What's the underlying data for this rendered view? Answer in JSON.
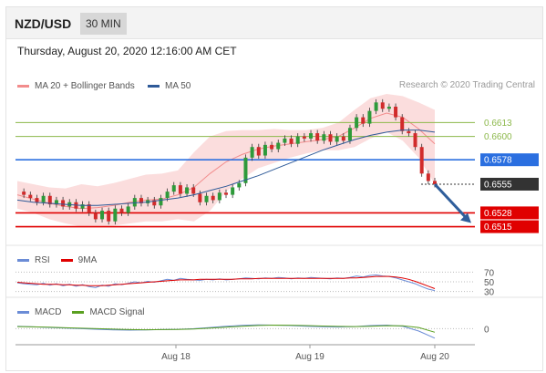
{
  "header": {
    "pair": "NZD/USD",
    "timeframe": "30 MIN"
  },
  "date": "Thursday, August 20, 2020 12:16:00 AM CET",
  "credit": "Research © 2020 Trading Central",
  "colors": {
    "bb": "#f28c8c",
    "ma50": "#2e5a98",
    "support": "#e00000",
    "resistance": "#2b6fe0",
    "green": "#8cb84a",
    "rsi": "#6b8cd6",
    "macd_signal": "#5aa020"
  },
  "chart_data": {
    "type": "line",
    "title": "",
    "legend": [
      "MA 20 + Bollinger Bands",
      "MA 50"
    ],
    "x_ticks": [
      "Aug 18",
      "Aug 19",
      "Aug 20"
    ],
    "ylim": [
      0.65,
      0.664
    ],
    "price_path": [
      0.6548,
      0.6545,
      0.6542,
      0.6538,
      0.6544,
      0.6536,
      0.654,
      0.6534,
      0.6538,
      0.6532,
      0.6536,
      0.6528,
      0.6522,
      0.653,
      0.652,
      0.6532,
      0.6528,
      0.6534,
      0.6542,
      0.6537,
      0.654,
      0.6535,
      0.6542,
      0.6548,
      0.6554,
      0.6546,
      0.6552,
      0.6546,
      0.6538,
      0.6544,
      0.654,
      0.6547,
      0.6545,
      0.6552,
      0.6556,
      0.658,
      0.659,
      0.6582,
      0.6592,
      0.6588,
      0.6594,
      0.6598,
      0.6593,
      0.66,
      0.6598,
      0.6603,
      0.6596,
      0.6602,
      0.6595,
      0.66,
      0.6596,
      0.6608,
      0.6618,
      0.6612,
      0.6624,
      0.6632,
      0.6626,
      0.6628,
      0.6618,
      0.6605,
      0.6603,
      0.659,
      0.6565,
      0.6558,
      0.6555
    ],
    "ma50_path": [
      0.654,
      0.6538,
      0.6537,
      0.6536,
      0.6535,
      0.6535,
      0.6536,
      0.6537,
      0.6538,
      0.654,
      0.6542,
      0.6545,
      0.6549,
      0.6553,
      0.6558,
      0.6563,
      0.6569,
      0.6575,
      0.6581,
      0.6587,
      0.6592,
      0.6597,
      0.6601,
      0.6604,
      0.6606,
      0.6606,
      0.6604
    ],
    "ma20_path": [
      0.6545,
      0.6541,
      0.6537,
      0.6534,
      0.6532,
      0.6533,
      0.6535,
      0.6538,
      0.654,
      0.6541,
      0.6545,
      0.6552,
      0.6565,
      0.6576,
      0.6583,
      0.6588,
      0.6591,
      0.6593,
      0.6595,
      0.6597,
      0.66,
      0.6608,
      0.6617,
      0.6622,
      0.6618,
      0.6607,
      0.6593
    ],
    "bb_upper": [
      0.6558,
      0.6555,
      0.6552,
      0.6551,
      0.6555,
      0.6553,
      0.6556,
      0.656,
      0.6564,
      0.6565,
      0.6568,
      0.6585,
      0.66,
      0.6605,
      0.6606,
      0.6606,
      0.6607,
      0.6606,
      0.6606,
      0.6608,
      0.6613,
      0.6625,
      0.6636,
      0.664,
      0.6638,
      0.6632,
      0.6625
    ],
    "bb_lower": [
      0.6532,
      0.6528,
      0.6522,
      0.6518,
      0.6515,
      0.6515,
      0.6516,
      0.6518,
      0.652,
      0.652,
      0.6522,
      0.652,
      0.653,
      0.6548,
      0.656,
      0.657,
      0.6575,
      0.658,
      0.6584,
      0.6587,
      0.6587,
      0.659,
      0.6598,
      0.6604,
      0.6596,
      0.658,
      0.6555
    ],
    "levels": [
      {
        "label": "0.6613",
        "value": 0.6613,
        "kind": "green"
      },
      {
        "label": "0.6600",
        "value": 0.66,
        "kind": "green"
      },
      {
        "label": "0.6578",
        "value": 0.6578,
        "kind": "resistance"
      },
      {
        "label": "0.6555",
        "value": 0.6555,
        "kind": "current"
      },
      {
        "label": "0.6528",
        "value": 0.6528,
        "kind": "support"
      },
      {
        "label": "0.6515",
        "value": 0.6515,
        "kind": "support"
      }
    ],
    "rsi": {
      "legend": [
        "RSI",
        "9MA"
      ],
      "ticks": [
        "70",
        "50",
        "30"
      ],
      "ylim": [
        20,
        80
      ],
      "rsi_path": [
        48,
        46,
        45,
        44,
        47,
        43,
        46,
        42,
        45,
        41,
        44,
        40,
        38,
        43,
        41,
        46,
        44,
        47,
        50,
        48,
        51,
        49,
        52,
        55,
        53,
        57,
        55,
        54,
        53,
        55,
        54,
        56,
        54,
        55,
        56,
        58,
        57,
        56,
        58,
        57,
        59,
        58,
        56,
        58,
        57,
        59,
        58,
        57,
        56,
        58,
        57,
        59,
        62,
        60,
        63,
        64,
        62,
        61,
        58,
        54,
        50,
        46,
        40,
        35,
        32
      ],
      "ma_path": [
        49,
        48,
        47,
        46,
        45,
        45,
        45,
        44,
        44,
        43,
        43,
        42,
        42,
        42,
        43,
        44,
        45,
        46,
        47,
        48,
        49,
        50,
        51,
        52,
        53,
        54,
        54,
        54,
        55,
        55,
        55,
        55,
        55,
        55,
        56,
        56,
        56,
        57,
        57,
        57,
        57,
        57,
        57,
        57,
        57,
        57,
        57,
        57,
        57,
        57,
        57,
        58,
        58,
        59,
        60,
        61,
        61,
        61,
        60,
        58,
        55,
        51,
        46,
        41,
        36
      ]
    },
    "macd": {
      "legend": [
        "MACD",
        "MACD Signal"
      ],
      "ticks": [
        "0"
      ],
      "ylim": [
        -0.0012,
        0.0008
      ],
      "macd_path": [
        0.0002,
        0.00015,
        0.0001,
        5e-05,
        0,
        -5e-05,
        -0.0001,
        -0.00012,
        -0.0001,
        -8e-05,
        -5e-05,
        0,
        0.0001,
        0.0002,
        0.00028,
        0.00032,
        0.0003,
        0.00026,
        0.0002,
        0.00016,
        0.00014,
        0.00018,
        0.00026,
        0.0003,
        0.0002,
        -0.0002,
        -0.0008
      ],
      "signal_path": [
        0.00018,
        0.00015,
        0.00012,
        8e-05,
        4e-05,
        0,
        -4e-05,
        -8e-05,
        -9e-05,
        -8e-05,
        -6e-05,
        -2e-05,
        5e-05,
        0.00013,
        0.00021,
        0.00027,
        0.0003,
        0.00029,
        0.00026,
        0.00022,
        0.00019,
        0.00018,
        0.00021,
        0.00025,
        0.00024,
        0.0001,
        -0.0003
      ]
    }
  }
}
